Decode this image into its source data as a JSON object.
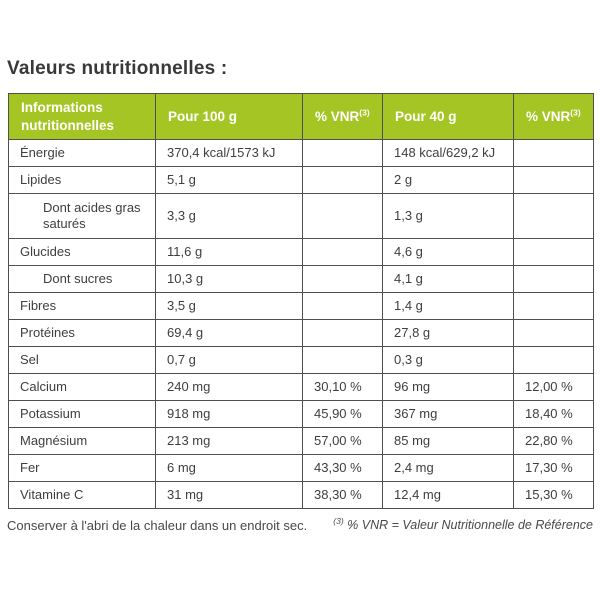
{
  "title": "Valeurs nutritionnelles :",
  "table": {
    "header": {
      "info": "Informations nutritionnelles",
      "per100": "Pour 100 g",
      "per40": "Pour 40 g",
      "vnr_label": "% VNR",
      "vnr_sup": "(3)"
    },
    "rows": [
      {
        "label": "Énergie",
        "indent": false,
        "tall": false,
        "per100": "370,4 kcal/1573 kJ",
        "vnr100": "",
        "per40": "148 kcal/629,2 kJ",
        "vnr40": ""
      },
      {
        "label": "Lipides",
        "indent": false,
        "tall": false,
        "per100": "5,1 g",
        "vnr100": "",
        "per40": "2 g",
        "vnr40": ""
      },
      {
        "label": "Dont acides gras saturés",
        "indent": true,
        "tall": true,
        "per100": "3,3 g",
        "vnr100": "",
        "per40": "1,3 g",
        "vnr40": ""
      },
      {
        "label": "Glucides",
        "indent": false,
        "tall": false,
        "per100": "11,6 g",
        "vnr100": "",
        "per40": "4,6 g",
        "vnr40": ""
      },
      {
        "label": "Dont sucres",
        "indent": true,
        "tall": false,
        "per100": "10,3 g",
        "vnr100": "",
        "per40": "4,1 g",
        "vnr40": ""
      },
      {
        "label": "Fibres",
        "indent": false,
        "tall": false,
        "per100": "3,5 g",
        "vnr100": "",
        "per40": "1,4 g",
        "vnr40": ""
      },
      {
        "label": "Protéines",
        "indent": false,
        "tall": false,
        "per100": "69,4 g",
        "vnr100": "",
        "per40": "27,8 g",
        "vnr40": ""
      },
      {
        "label": "Sel",
        "indent": false,
        "tall": false,
        "per100": "0,7 g",
        "vnr100": "",
        "per40": "0,3 g",
        "vnr40": ""
      },
      {
        "label": "Calcium",
        "indent": false,
        "tall": false,
        "per100": "240 mg",
        "vnr100": "30,10 %",
        "per40": "96 mg",
        "vnr40": "12,00 %"
      },
      {
        "label": "Potassium",
        "indent": false,
        "tall": false,
        "per100": "918 mg",
        "vnr100": "45,90 %",
        "per40": "367 mg",
        "vnr40": "18,40 %"
      },
      {
        "label": "Magnésium",
        "indent": false,
        "tall": false,
        "per100": "213 mg",
        "vnr100": "57,00 %",
        "per40": "85 mg",
        "vnr40": "22,80 %"
      },
      {
        "label": "Fer",
        "indent": false,
        "tall": false,
        "per100": "6 mg",
        "vnr100": "43,30 %",
        "per40": "2,4 mg",
        "vnr40": "17,30 %"
      },
      {
        "label": "Vitamine C",
        "indent": false,
        "tall": false,
        "per100": "31 mg",
        "vnr100": "38,30 %",
        "per40": "12,4 mg",
        "vnr40": "15,30 %"
      }
    ]
  },
  "footer": {
    "storage": "Conserver à l'abri de la chaleur dans un endroit sec.",
    "footnote_sup": "(3)",
    "footnote_text": "% VNR = Valeur Nutritionnelle de Référence"
  },
  "colors": {
    "header_bg": "#a5c525",
    "header_text": "#ffffff",
    "border": "#4f4f4f",
    "text": "#3e3e3e"
  }
}
